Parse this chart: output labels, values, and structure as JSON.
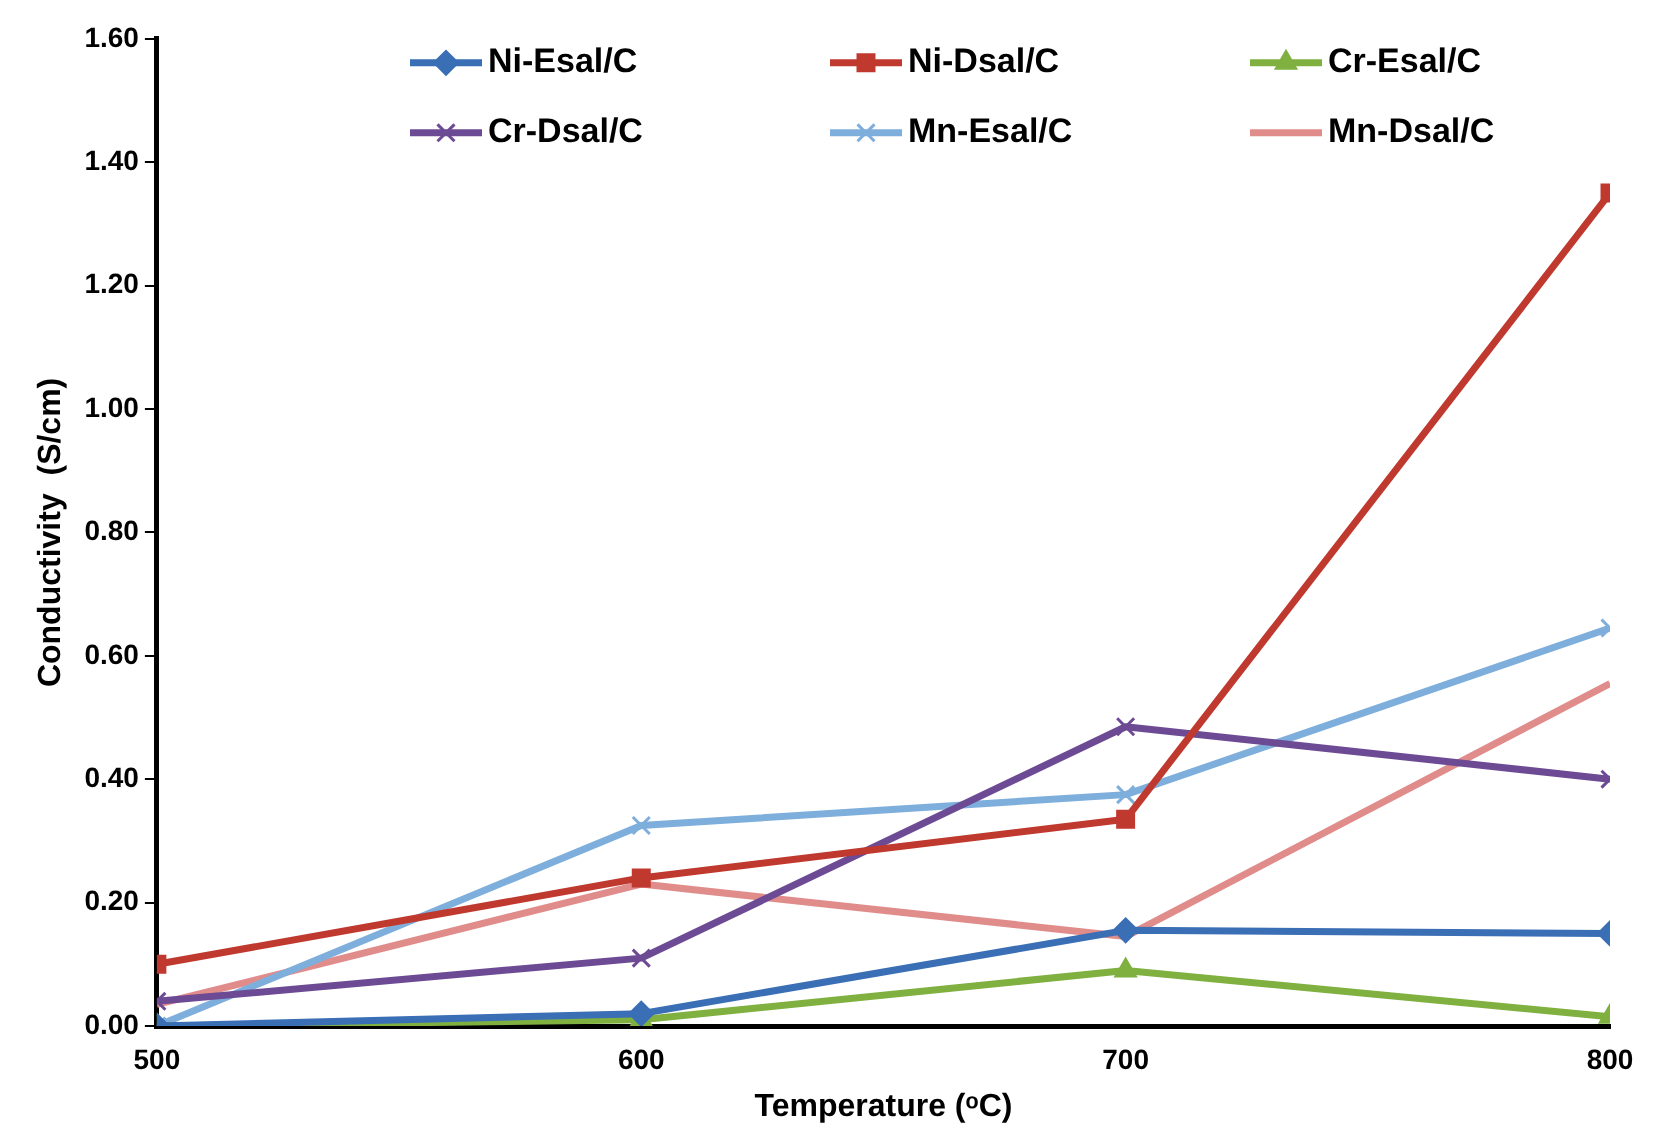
{
  "chart_data": {
    "type": "line",
    "xlabel": "Temperature (ᵒC)",
    "ylabel": "Conductivity  (S/cm)",
    "x": [
      500,
      600,
      700,
      800
    ],
    "series": [
      {
        "name": "Ni-Esal/C",
        "color": "#3a6eb5",
        "marker": "diamond",
        "values": [
          0,
          0.02,
          0.155,
          0.15
        ]
      },
      {
        "name": "Ni-Dsal/C",
        "color": "#c0392f",
        "marker": "square",
        "values": [
          0.1,
          0.24,
          0.335,
          1.35
        ]
      },
      {
        "name": "Cr-Esal/C",
        "color": "#7fb040",
        "marker": "triangle",
        "values": [
          0,
          0.01,
          0.09,
          0.015
        ]
      },
      {
        "name": "Cr-Dsal/C",
        "color": "#6d4a94",
        "marker": "cross",
        "values": [
          0.04,
          0.11,
          0.485,
          0.4
        ]
      },
      {
        "name": "Mn-Esal/C",
        "color": "#7eaedb",
        "marker": "cross",
        "values": [
          0,
          0.325,
          0.375,
          0.645
        ]
      },
      {
        "name": "Mn-Dsal/C",
        "color": "#e08c8a",
        "marker": "none",
        "values": [
          0.035,
          0.23,
          0.145,
          0.555
        ]
      }
    ],
    "xlim": [
      500,
      800
    ],
    "xticks": [
      500,
      600,
      700,
      800
    ],
    "ylim": [
      0,
      1.6
    ],
    "yticks": [
      {
        "value": 0,
        "label": "0.00"
      },
      {
        "value": 0.2,
        "label": "0.20"
      },
      {
        "value": 0.4,
        "label": "0.40"
      },
      {
        "value": 0.6,
        "label": "0.60"
      },
      {
        "value": 0.8,
        "label": "0.80"
      },
      {
        "value": 1,
        "label": "1.00"
      },
      {
        "value": 1.2,
        "label": "1.20"
      },
      {
        "value": 1.4,
        "label": "1.40"
      },
      {
        "value": 1.6,
        "label": "1.60"
      }
    ],
    "grid": false,
    "legend": "top right"
  }
}
